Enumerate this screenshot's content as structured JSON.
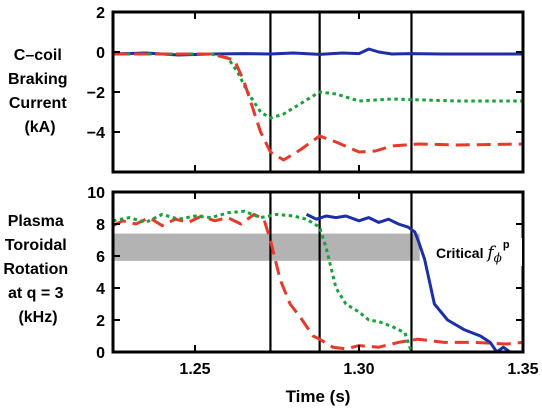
{
  "figure": {
    "xlabel": "Time (s)",
    "xticks": [
      1.25,
      1.3,
      1.35
    ],
    "xtick_labels": [
      "1.25",
      "1.30",
      "1.35"
    ],
    "xlim": [
      1.225,
      1.35
    ],
    "vlines_x": [
      1.273,
      1.288,
      1.316
    ],
    "colors": {
      "blue": "#1c2fa7",
      "green": "#17a33b",
      "red": "#e8392b",
      "band": "#b3b3b3",
      "axis": "#000000"
    }
  },
  "chart_data": [
    {
      "type": "line",
      "ylabel_lines": [
        "C–coil",
        "Braking",
        "Current",
        "(kA)"
      ],
      "ylim": [
        -6,
        2
      ],
      "yticks": [
        2,
        0,
        -2,
        -4
      ],
      "ytick_labels": [
        "2",
        "0",
        "−2",
        "−4"
      ],
      "series": [
        {
          "color": "#1c2fa7",
          "style": "solid",
          "x": [
            1.225,
            1.235,
            1.245,
            1.255,
            1.265,
            1.273,
            1.28,
            1.288,
            1.295,
            1.3,
            1.303,
            1.306,
            1.31,
            1.316,
            1.325,
            1.335,
            1.35
          ],
          "y": [
            -0.1,
            -0.05,
            -0.15,
            -0.1,
            -0.08,
            -0.1,
            -0.05,
            -0.12,
            -0.05,
            -0.08,
            0.15,
            0.0,
            -0.1,
            -0.08,
            -0.1,
            -0.1,
            -0.1
          ]
        },
        {
          "color": "#17a33b",
          "style": "dotted",
          "x": [
            1.225,
            1.24,
            1.255,
            1.26,
            1.263,
            1.266,
            1.27,
            1.273,
            1.277,
            1.282,
            1.288,
            1.293,
            1.3,
            1.31,
            1.32,
            1.33,
            1.35
          ],
          "y": [
            -0.1,
            -0.1,
            -0.1,
            -0.3,
            -1.0,
            -2.0,
            -3.0,
            -3.3,
            -3.1,
            -2.6,
            -2.0,
            -2.1,
            -2.45,
            -2.35,
            -2.4,
            -2.45,
            -2.45
          ]
        },
        {
          "color": "#e8392b",
          "style": "dashed",
          "x": [
            1.225,
            1.24,
            1.255,
            1.262,
            1.265,
            1.268,
            1.27,
            1.273,
            1.277,
            1.282,
            1.288,
            1.293,
            1.3,
            1.305,
            1.31,
            1.318,
            1.33,
            1.35
          ],
          "y": [
            -0.1,
            -0.1,
            -0.1,
            -0.4,
            -1.5,
            -3.0,
            -4.0,
            -5.0,
            -5.4,
            -4.9,
            -4.2,
            -4.5,
            -5.0,
            -4.95,
            -4.7,
            -4.6,
            -4.65,
            -4.6
          ]
        }
      ]
    },
    {
      "type": "line",
      "ylabel_lines": [
        "Plasma",
        "Toroidal",
        "Rotation",
        "at q = 3",
        "(kHz)"
      ],
      "ylim": [
        0,
        10
      ],
      "yticks": [
        10,
        8,
        6,
        4,
        2,
        0
      ],
      "ytick_labels": [
        "10",
        "8",
        "6",
        "4",
        "2",
        "0"
      ],
      "band": {
        "y": [
          5.7,
          7.4
        ],
        "x": [
          1.225,
          1.3185
        ]
      },
      "annotation": {
        "text": "Critical ",
        "symbol": "f",
        "subscript": "ϕ",
        "superscript": "p"
      },
      "series": [
        {
          "color": "#e8392b",
          "style": "dashed",
          "x": [
            1.225,
            1.228,
            1.232,
            1.236,
            1.24,
            1.244,
            1.248,
            1.252,
            1.256,
            1.26,
            1.264,
            1.268,
            1.271,
            1.273,
            1.276,
            1.279,
            1.282,
            1.284,
            1.286,
            1.288,
            1.292,
            1.296,
            1.3,
            1.306,
            1.312,
            1.318,
            1.326,
            1.335,
            1.345,
            1.35
          ],
          "y": [
            7.9,
            8.2,
            8.0,
            8.4,
            7.9,
            8.3,
            8.1,
            8.5,
            8.2,
            8.4,
            8.0,
            8.6,
            8.3,
            7.0,
            4.5,
            3.0,
            2.2,
            1.6,
            1.0,
            0.8,
            0.3,
            0.2,
            0.4,
            0.3,
            0.6,
            0.8,
            0.6,
            0.6,
            0.5,
            0.6
          ]
        },
        {
          "color": "#17a33b",
          "style": "dotted",
          "x": [
            1.225,
            1.23,
            1.235,
            1.24,
            1.245,
            1.25,
            1.255,
            1.26,
            1.265,
            1.27,
            1.275,
            1.28,
            1.284,
            1.288,
            1.29,
            1.293,
            1.296,
            1.3,
            1.303,
            1.306,
            1.31,
            1.314,
            1.316
          ],
          "y": [
            8.2,
            8.4,
            8.1,
            8.6,
            8.3,
            8.5,
            8.4,
            8.7,
            8.8,
            8.4,
            8.6,
            8.5,
            8.3,
            7.8,
            6.5,
            4.0,
            3.0,
            2.5,
            2.0,
            1.9,
            1.6,
            1.2,
            0.0
          ]
        },
        {
          "color": "#1c2fa7",
          "style": "solid",
          "x": [
            1.284,
            1.287,
            1.29,
            1.293,
            1.296,
            1.3,
            1.303,
            1.306,
            1.309,
            1.312,
            1.315,
            1.317,
            1.318,
            1.32,
            1.323,
            1.327,
            1.332,
            1.337,
            1.34,
            1.342,
            1.344,
            1.346
          ],
          "y": [
            8.6,
            8.3,
            8.5,
            8.4,
            8.5,
            8.2,
            8.4,
            8.1,
            8.3,
            8.0,
            7.8,
            7.5,
            7.0,
            5.8,
            3.0,
            2.0,
            1.4,
            1.0,
            0.6,
            0.0,
            0.3,
            0.0
          ]
        }
      ]
    }
  ]
}
